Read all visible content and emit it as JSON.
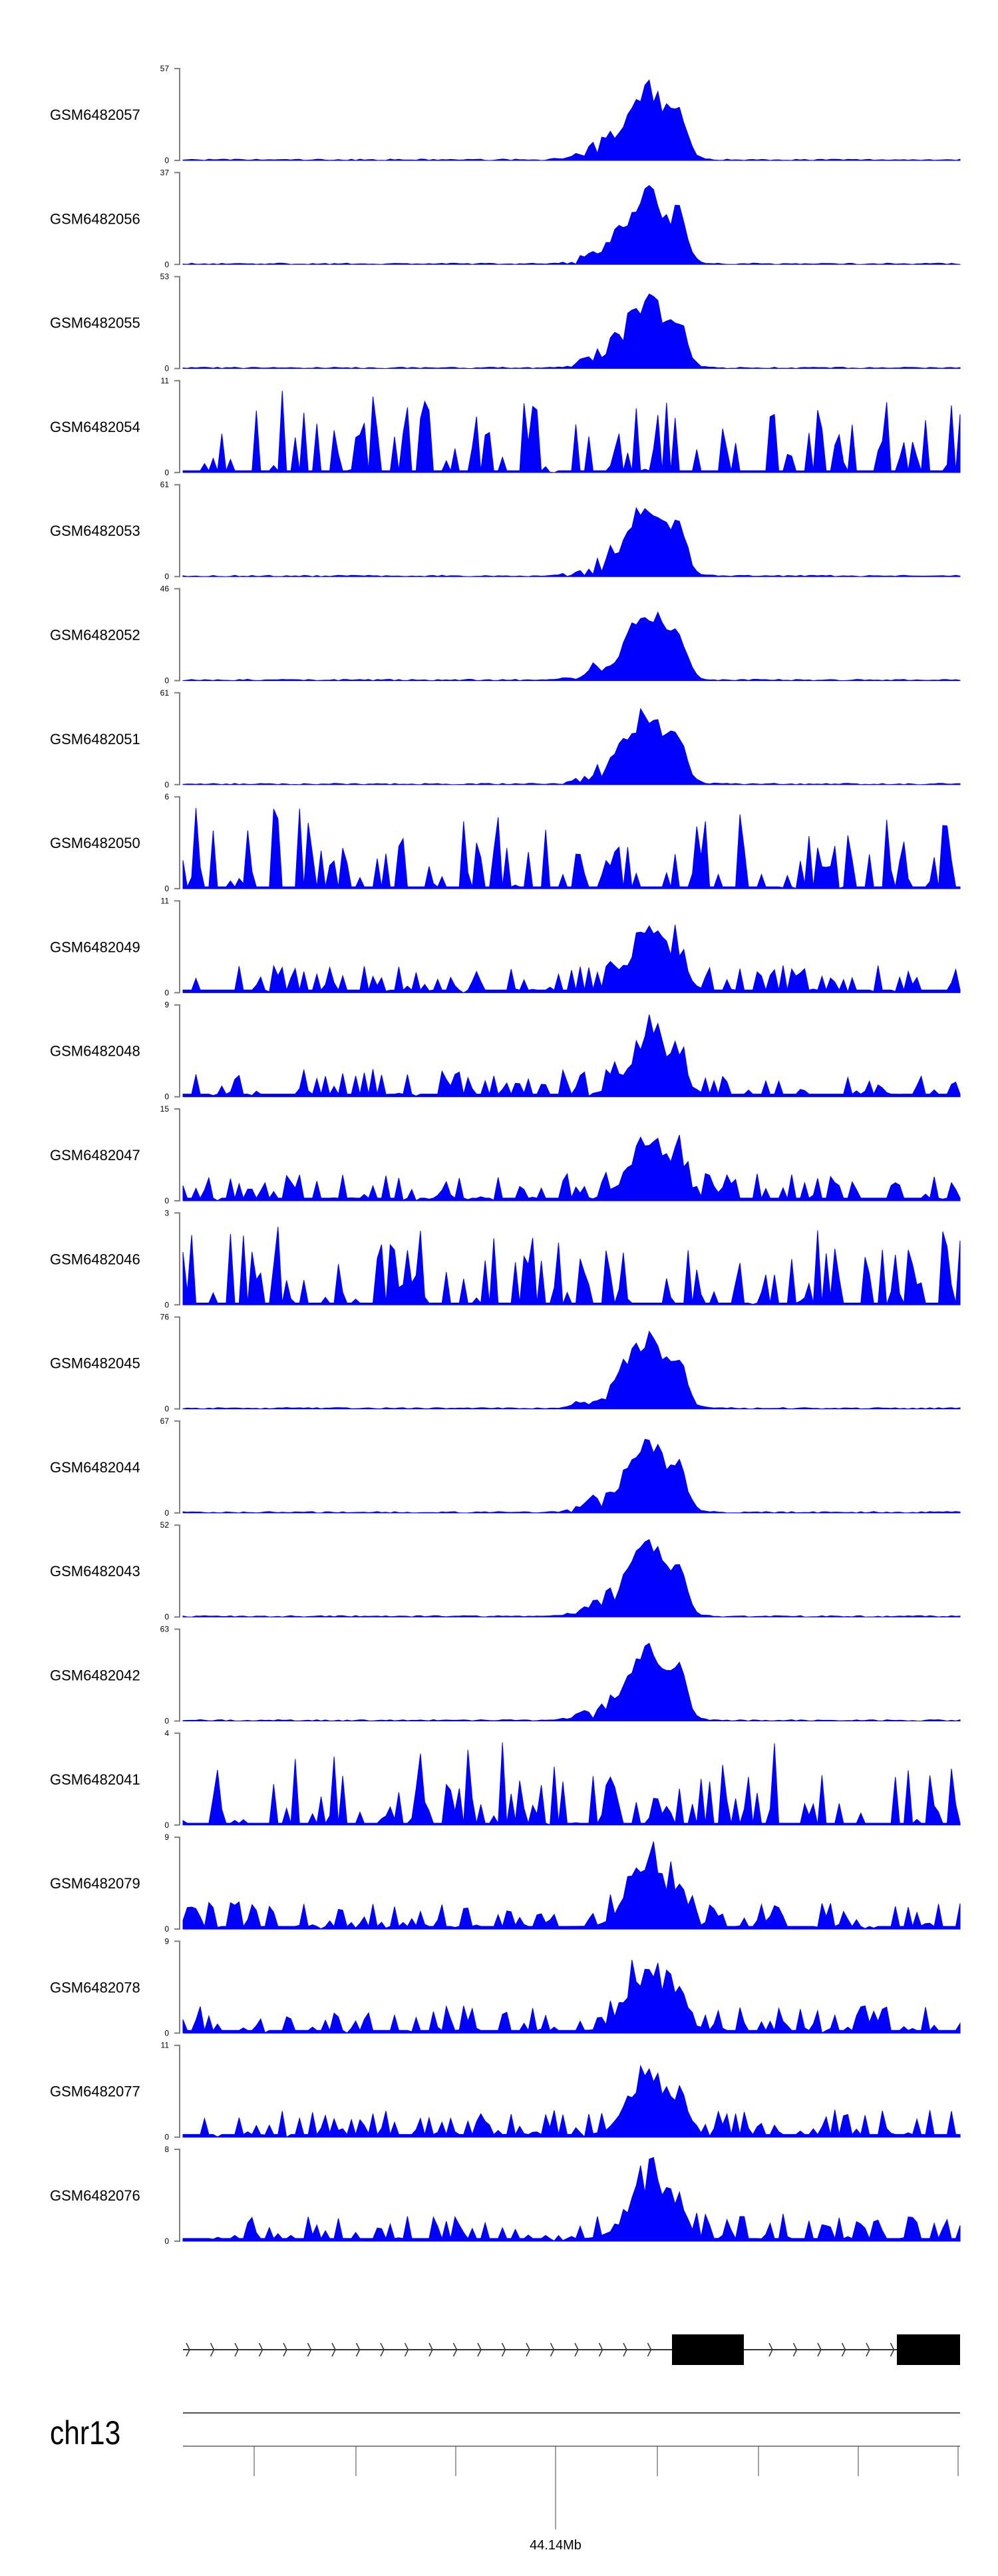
{
  "chart_data": {
    "type": "area",
    "title": "",
    "fill_color": "#0000ff",
    "axis_color": "#808080",
    "tracks": [
      {
        "name": "GSM6482057",
        "ymax": 57,
        "profile": "peak"
      },
      {
        "name": "GSM6482056",
        "ymax": 37,
        "profile": "peak"
      },
      {
        "name": "GSM6482055",
        "ymax": 53,
        "profile": "peak"
      },
      {
        "name": "GSM6482054",
        "ymax": 11,
        "profile": "noisy"
      },
      {
        "name": "GSM6482053",
        "ymax": 61,
        "profile": "peak"
      },
      {
        "name": "GSM6482052",
        "ymax": 46,
        "profile": "peak"
      },
      {
        "name": "GSM6482051",
        "ymax": 61,
        "profile": "peak"
      },
      {
        "name": "GSM6482050",
        "ymax": 6,
        "profile": "noisy"
      },
      {
        "name": "GSM6482049",
        "ymax": 11,
        "profile": "mixed"
      },
      {
        "name": "GSM6482048",
        "ymax": 9,
        "profile": "mixed"
      },
      {
        "name": "GSM6482047",
        "ymax": 15,
        "profile": "mixed"
      },
      {
        "name": "GSM6482046",
        "ymax": 3,
        "profile": "noisy"
      },
      {
        "name": "GSM6482045",
        "ymax": 76,
        "profile": "peak"
      },
      {
        "name": "GSM6482044",
        "ymax": 67,
        "profile": "peak"
      },
      {
        "name": "GSM6482043",
        "ymax": 52,
        "profile": "peak"
      },
      {
        "name": "GSM6482042",
        "ymax": 63,
        "profile": "peak"
      },
      {
        "name": "GSM6482041",
        "ymax": 4,
        "profile": "noisy"
      },
      {
        "name": "GSM6482079",
        "ymax": 9,
        "profile": "mixed"
      },
      {
        "name": "GSM6482078",
        "ymax": 9,
        "profile": "mixed"
      },
      {
        "name": "GSM6482077",
        "ymax": 11,
        "profile": "mixed"
      },
      {
        "name": "GSM6482076",
        "ymax": 8,
        "profile": "mixed"
      }
    ],
    "ymin_label": "0",
    "gene_track": {
      "strand": "+",
      "exons": 2
    },
    "chromosome": "chr13",
    "x_axis_label": "44.14Mb"
  }
}
